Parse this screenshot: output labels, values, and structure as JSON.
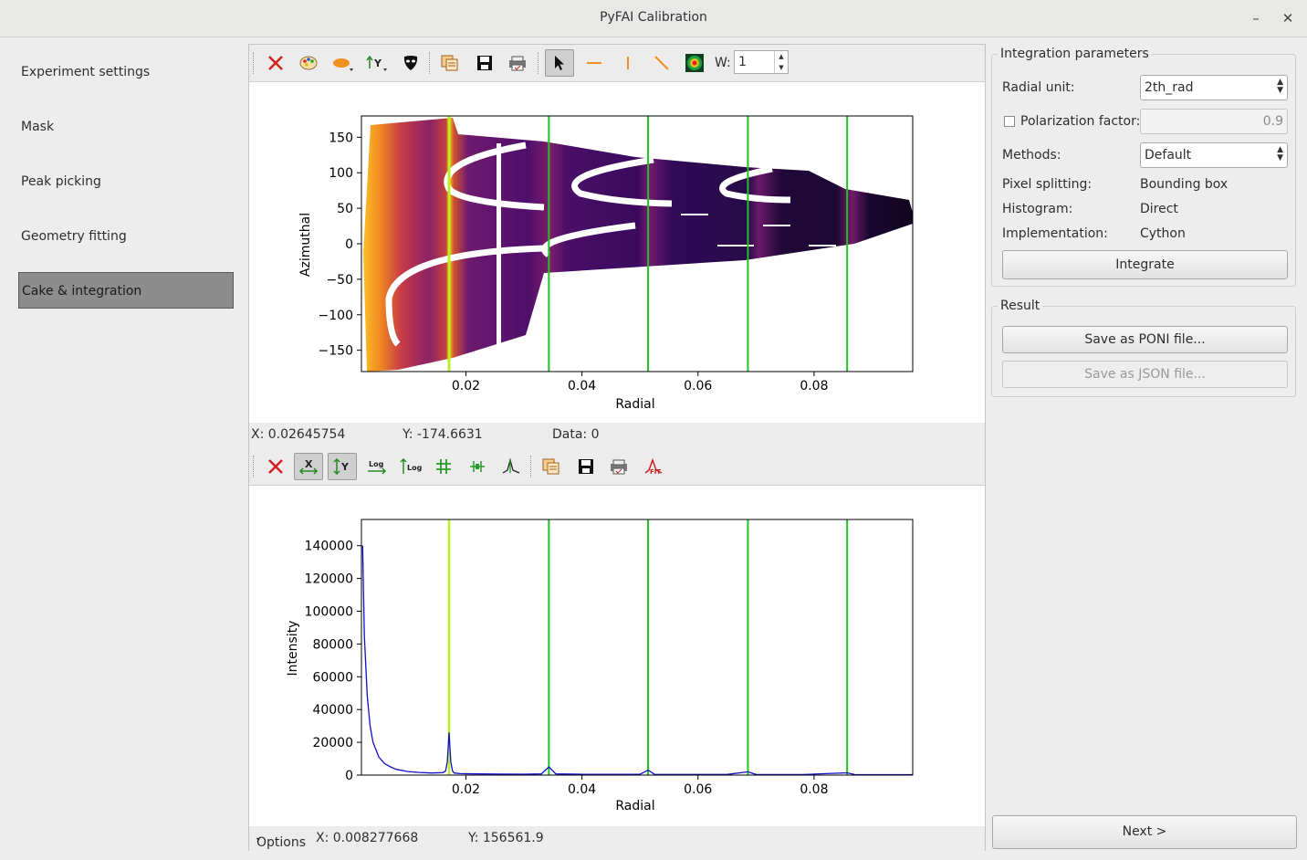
{
  "window": {
    "title": "PyFAI Calibration",
    "minimize_glyph": "–",
    "close_glyph": "✕"
  },
  "sidebar": {
    "items": [
      {
        "label": "Experiment settings",
        "active": false
      },
      {
        "label": "Mask",
        "active": false
      },
      {
        "label": "Peak picking",
        "active": false
      },
      {
        "label": "Geometry fitting",
        "active": false
      },
      {
        "label": "Cake & integration",
        "active": true
      }
    ]
  },
  "top_toolbar": {
    "icons": [
      "reset-zoom-icon",
      "colormap-icon",
      "shape-icon",
      "y-axis-icon",
      "mask-icon",
      "copy-icon",
      "save-icon",
      "print-icon",
      "pointer-icon",
      "horizontal-line-icon",
      "vertical-line-icon",
      "diagonal-line-icon",
      "image-profile-icon"
    ],
    "width_label": "W:",
    "width_value": "1"
  },
  "top_status": {
    "x": "X: 0.02645754",
    "y": "Y: -174.6631",
    "data": "Data: 0"
  },
  "bottom_toolbar": {
    "icons": [
      "reset-zoom-icon",
      "x-autoscale-icon",
      "y-autoscale-icon",
      "x-log-icon",
      "y-log-icon",
      "grid-icon",
      "curve-style-icon",
      "peak-icon",
      "copy-icon",
      "save-icon",
      "print-icon",
      "fit-icon"
    ]
  },
  "bottom_status": {
    "options": "Options",
    "x": "X: 0.008277668",
    "y": "Y: 156561.9"
  },
  "integration": {
    "group_title": "Integration parameters",
    "radial_unit_label": "Radial unit:",
    "radial_unit_value": "2th_rad",
    "polarization_label": "Polarization factor:",
    "polarization_checked": false,
    "polarization_value": "0.9",
    "methods_label": "Methods:",
    "methods_value": "Default",
    "pixel_splitting_label": "Pixel splitting:",
    "pixel_splitting_value": "Bounding box",
    "histogram_label": "Histogram:",
    "histogram_value": "Direct",
    "implementation_label": "Implementation:",
    "implementation_value": "Cython",
    "integrate_label": "Integrate"
  },
  "result": {
    "group_title": "Result",
    "save_poni_label": "Save as PONI file...",
    "save_json_label": "Save as JSON file..."
  },
  "next_label": "Next >",
  "colors": {
    "accent_ring_main": "#b8f020",
    "ring_green": "#22c022",
    "curve_blue": "#1010c8",
    "sidebar_active": "#8d8d8d"
  },
  "chart_data": [
    {
      "type": "heatmap",
      "xlabel": "Radial",
      "ylabel": "Azimuthal",
      "xlim": [
        0.002,
        0.097
      ],
      "ylim": [
        -180,
        180
      ],
      "xticks": [
        0.02,
        0.04,
        0.06,
        0.08
      ],
      "xtick_labels": [
        "0.02",
        "0.04",
        "0.06",
        "0.08"
      ],
      "yticks": [
        150,
        100,
        50,
        0,
        -50,
        -100,
        -150
      ],
      "ytick_labels": [
        "150",
        "100",
        "50",
        "0",
        "−50",
        "−100",
        "−150"
      ],
      "colormap": "inferno",
      "ring_markers": [
        0.0171,
        0.0343,
        0.0514,
        0.0686,
        0.0857
      ]
    },
    {
      "type": "line",
      "xlabel": "Radial",
      "ylabel": "Intensity",
      "xlim": [
        0.002,
        0.097
      ],
      "ylim": [
        0,
        156000
      ],
      "xticks": [
        0.02,
        0.04,
        0.06,
        0.08
      ],
      "xtick_labels": [
        "0.02",
        "0.04",
        "0.06",
        "0.08"
      ],
      "yticks": [
        0,
        20000,
        40000,
        60000,
        80000,
        100000,
        120000,
        140000
      ],
      "ytick_labels": [
        "0",
        "20000",
        "40000",
        "60000",
        "80000",
        "100000",
        "120000",
        "140000"
      ],
      "ring_markers": [
        0.0171,
        0.0343,
        0.0514,
        0.0686,
        0.0857
      ],
      "series": [
        {
          "x": [
            0.0022,
            0.0025,
            0.003,
            0.0035,
            0.004,
            0.005,
            0.006,
            0.007,
            0.008,
            0.01,
            0.012,
            0.014,
            0.016,
            0.0165,
            0.0168,
            0.0171,
            0.0174,
            0.0177,
            0.018,
            0.019,
            0.022,
            0.026,
            0.03,
            0.033,
            0.0343,
            0.0355,
            0.04,
            0.045,
            0.05,
            0.0514,
            0.0525,
            0.06,
            0.065,
            0.0686,
            0.07,
            0.078,
            0.0857,
            0.087,
            0.097
          ],
          "y": [
            140000,
            85000,
            48000,
            30000,
            20000,
            11000,
            7000,
            5000,
            3500,
            2200,
            1600,
            1300,
            1500,
            2500,
            8000,
            26000,
            8000,
            2500,
            1300,
            900,
            700,
            600,
            550,
            700,
            5000,
            700,
            500,
            450,
            500,
            3000,
            500,
            400,
            400,
            2000,
            400,
            350,
            1400,
            350,
            300
          ]
        }
      ]
    }
  ]
}
